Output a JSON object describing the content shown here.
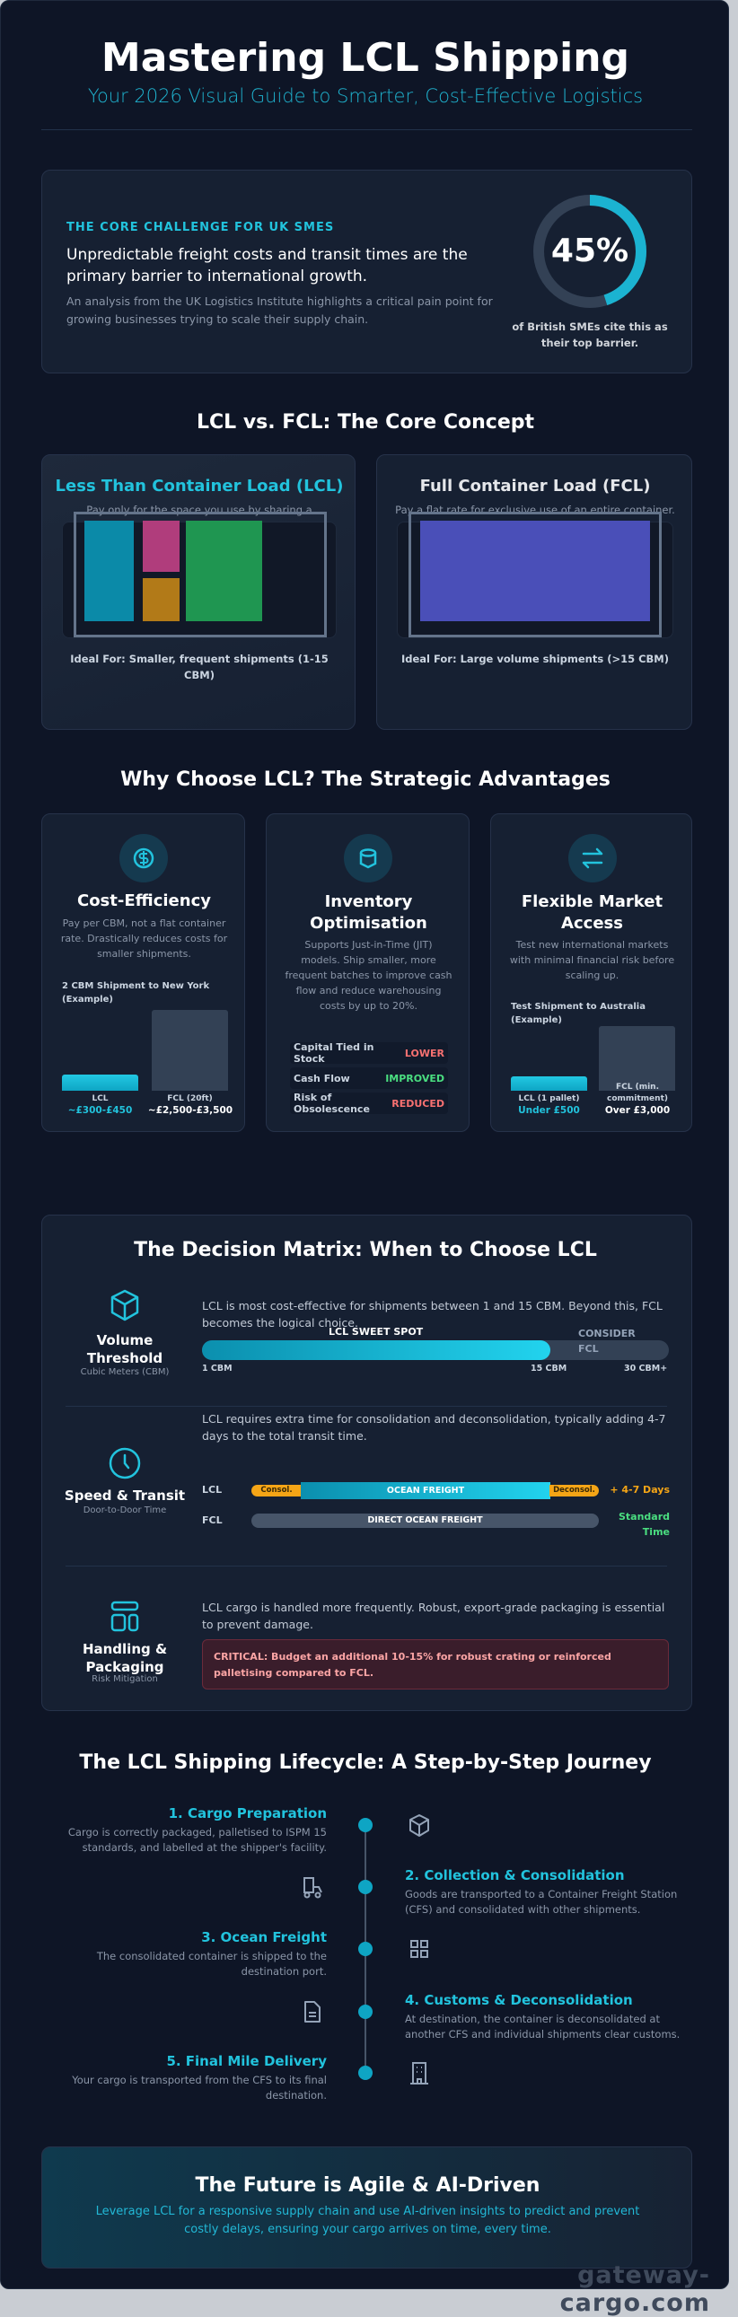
{
  "header": {
    "title": "Mastering LCL Shipping",
    "subtitle": "Your 2026 Visual Guide to Smarter, Cost-Effective Logistics"
  },
  "challenge": {
    "label": "THE CORE CHALLENGE FOR UK SMES",
    "headline": "Unpredictable freight costs and transit times are the primary barrier to international growth.",
    "description": "An analysis from the UK Logistics Institute highlights a critical pain point for growing businesses trying to scale their supply chain.",
    "stat": "45%",
    "stat_value": 45,
    "stat_caption": "of British SMEs cite this as their top barrier."
  },
  "concept": {
    "title": "LCL vs. FCL: The Core Concept",
    "lcl": {
      "title": "Less Than Container Load (LCL)",
      "description": "Pay only for the space you use by sharing a container with other shippers.",
      "ideal": "Ideal For: Smaller, frequent shipments (1-15 CBM)"
    },
    "fcl": {
      "title": "Full Container Load (FCL)",
      "description": "Pay a flat rate for exclusive use of an entire container.",
      "ideal": "Ideal For: Large volume shipments (>15 CBM)"
    }
  },
  "advantages": {
    "title": "Why Choose LCL? The Strategic Advantages",
    "cards": [
      {
        "icon": "dollar-icon",
        "title": "Cost-Efficiency",
        "description": "Pay per CBM, not a flat container rate. Drastically reduces costs for smaller shipments.",
        "chart_label": "2 CBM Shipment to New York (Example)",
        "bars": [
          {
            "label": "LCL",
            "value": "~£300-£450"
          },
          {
            "label": "FCL (20ft)",
            "value": "~£2,500-£3,500"
          }
        ]
      },
      {
        "icon": "database-icon",
        "title": "Inventory Optimisation",
        "description": "Supports Just-in-Time (JIT) models. Ship smaller, more frequent batches to improve cash flow and reduce warehousing costs by up to 20%.",
        "rows": [
          {
            "label": "Capital Tied in Stock",
            "value": "LOWER"
          },
          {
            "label": "Cash Flow",
            "value": "IMPROVED"
          },
          {
            "label": "Risk of Obsolescence",
            "value": "REDUCED"
          }
        ]
      },
      {
        "icon": "arrows-exchange-icon",
        "title": "Flexible Market Access",
        "description": "Test new international markets with minimal financial risk before scaling up.",
        "chart_label": "Test Shipment to Australia (Example)",
        "bars": [
          {
            "label": "LCL (1 pallet)",
            "value": "Under £500"
          },
          {
            "label": "FCL (min. commitment)",
            "value": "Over £3,000"
          }
        ]
      }
    ]
  },
  "matrix": {
    "title": "The Decision Matrix: When to Choose LCL",
    "volume": {
      "title": "Volume Threshold",
      "sub": "Cubic Meters (CBM)",
      "text": "LCL is most cost-effective for shipments between 1 and 15 CBM. Beyond this, FCL becomes the logical choice.",
      "sweet_spot": "LCL SWEET SPOT",
      "consider": "CONSIDER FCL",
      "ticks": [
        "1 CBM",
        "15 CBM",
        "30 CBM+"
      ]
    },
    "speed": {
      "title": "Speed & Transit",
      "sub": "Door-to-Door Time",
      "text": "LCL requires extra time for consolidation and deconsolidation, typically adding 4-7 days to the total transit time.",
      "lcl_label": "LCL",
      "consol": "Consol.",
      "ocean": "OCEAN FREIGHT",
      "deconsol": "Deconsol.",
      "lcl_extra": "+ 4-7 Days",
      "fcl_label": "FCL",
      "fcl_bar": "DIRECT OCEAN FREIGHT",
      "fcl_extra": "Standard Time"
    },
    "handling": {
      "title": "Handling & Packaging",
      "sub": "Risk Mitigation",
      "text": "LCL cargo is handled more frequently. Robust, export-grade packaging is essential to prevent damage.",
      "critical": "CRITICAL: Budget an additional 10-15% for robust crating or reinforced palletising compared to FCL."
    }
  },
  "lifecycle": {
    "title": "The LCL Shipping Lifecycle: A Step-by-Step Journey",
    "steps": [
      {
        "title": "1. Cargo Preparation",
        "text": "Cargo is correctly packaged, palletised to ISPM 15 standards, and labelled at the shipper's facility.",
        "icon": "box-icon"
      },
      {
        "title": "2. Collection & Consolidation",
        "text": "Goods are transported to a Container Freight Station (CFS) and consolidated with other shipments.",
        "icon": "truck-icon"
      },
      {
        "title": "3. Ocean Freight",
        "text": "The consolidated container is shipped to the destination port.",
        "icon": "containers-icon"
      },
      {
        "title": "4. Customs & Deconsolidation",
        "text": "At destination, the container is deconsolidated at another CFS and individual shipments clear customs.",
        "icon": "document-icon"
      },
      {
        "title": "5. Final Mile Delivery",
        "text": "Your cargo is transported from the CFS to its final destination.",
        "icon": "building-icon"
      }
    ]
  },
  "footer": {
    "title": "The Future is Agile & AI-Driven",
    "text": "Leverage LCL for a responsive supply chain and use AI-driven insights to predict and prevent costly delays, ensuring your cargo arrives on time, every time.",
    "watermark": "gateway-cargo.com"
  },
  "colors": {
    "accent": "#22c3dd",
    "background": "#0e1526",
    "card": "#162032",
    "lcl_block_1": "#0b8aa8",
    "lcl_block_2": "#b03d7c",
    "lcl_block_3": "#b27a18",
    "lcl_block_4": "#1f9651",
    "fcl_block": "#4a4fb8",
    "consol": "#f59e0b",
    "positive": "#4ade80",
    "negative": "#f87171"
  }
}
